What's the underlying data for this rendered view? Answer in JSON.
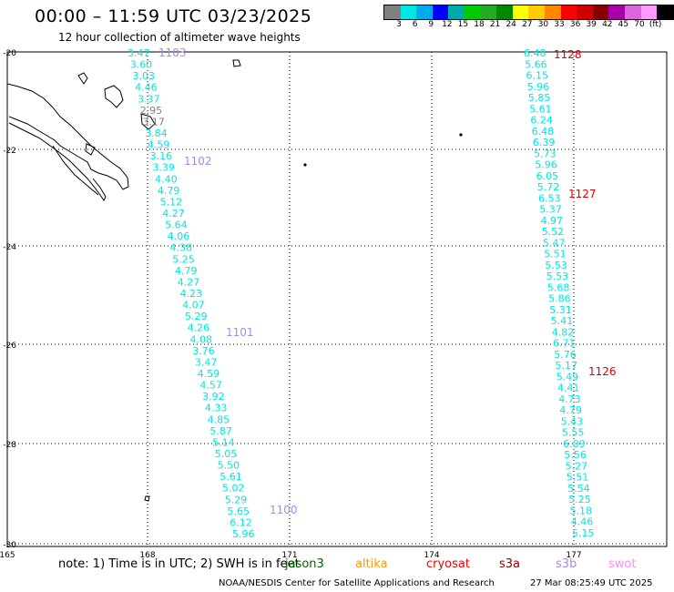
{
  "title": "00:00 – 11:59 UTC 03/23/2025",
  "subtitle": "12 hour collection of altimeter wave heights",
  "colorbar": {
    "colors": [
      "#808080",
      "#00e5e5",
      "#00aaee",
      "#0000ff",
      "#00aaaa",
      "#00cc00",
      "#22aa22",
      "#008800",
      "#ffff00",
      "#ffcc00",
      "#ff8800",
      "#ff0000",
      "#cc0000",
      "#880000",
      "#aa00aa",
      "#dd66dd",
      "#ff99ff",
      "#000000"
    ],
    "ticks": [
      "3",
      "6",
      "9",
      "12",
      "15",
      "18",
      "21",
      "24",
      "27",
      "30",
      "33",
      "36",
      "39",
      "42",
      "45",
      "70",
      "(ft)"
    ]
  },
  "axes": {
    "x_ticks": [
      "165",
      "168",
      "171",
      "174",
      "177"
    ],
    "y_ticks": [
      "-20",
      "-22",
      "-24",
      "-26",
      "-28",
      "-30"
    ]
  },
  "left_track": {
    "color": "#00e5e5",
    "values": [
      "3.47",
      "3.60",
      "3.03",
      "4.46",
      "3.37",
      "2.95",
      "3.17",
      "3.84",
      "4.59",
      "3.16",
      "3.39",
      "4.40",
      "4.79",
      "5.12",
      "4.27",
      "5.64",
      "4.06",
      "4.38",
      "5.25",
      "4.79",
      "4.27",
      "4.23",
      "4.07",
      "5.29",
      "4.26",
      "4.08",
      "3.76",
      "3.47",
      "4.59",
      "4.57",
      "3.92",
      "4.33",
      "4.85",
      "5.87",
      "5.14",
      "5.05",
      "5.50",
      "5.61",
      "5.02",
      "5.29",
      "5.65",
      "6.12",
      "5.96"
    ]
  },
  "right_track": {
    "color": "#00e5e5",
    "values": [
      "6.48",
      "5.66",
      "6.15",
      "5.96",
      "5.85",
      "5.61",
      "6.24",
      "6.48",
      "6.39",
      "5.73",
      "5.96",
      "6.05",
      "5.72",
      "6.53",
      "5.37",
      "4.97",
      "5.52",
      "5.47",
      "5.51",
      "5.53",
      "5.53",
      "5.68",
      "5.86",
      "5.31",
      "5.41",
      "4.82",
      "6.71",
      "5.76",
      "5.17",
      "5.49",
      "4.41",
      "4.73",
      "4.79",
      "5.43",
      "5.55",
      "6.09",
      "5.56",
      "5.27",
      "5.51",
      "5.54",
      "5.25",
      "5.18",
      "4.46",
      "5.15"
    ]
  },
  "time_labels": [
    {
      "text": "1103",
      "color": "#aa88ee"
    },
    {
      "text": "1102",
      "color": "#aa88ee"
    },
    {
      "text": "1101",
      "color": "#aa88ee"
    },
    {
      "text": "1100",
      "color": "#aa88ee"
    },
    {
      "text": "1128",
      "color": "#dd0000"
    },
    {
      "text": "1127",
      "color": "#dd0000"
    },
    {
      "text": "1126",
      "color": "#dd0000"
    }
  ],
  "note": "note:  1) Time is in UTC; 2) SWH is in feet",
  "satellites": [
    {
      "name": "jason3",
      "color": "#006600"
    },
    {
      "name": "altika",
      "color": "#ff9900"
    },
    {
      "name": "cryosat",
      "color": "#ee0000"
    },
    {
      "name": "s3a",
      "color": "#880000"
    },
    {
      "name": "s3b",
      "color": "#aa88ee"
    },
    {
      "name": "swot",
      "color": "#ff88ff"
    }
  ],
  "credit": "NOAA/NESDIS Center for Satellite Applications and Research",
  "timestamp": "27 Mar 08:25:49 UTC 2025"
}
